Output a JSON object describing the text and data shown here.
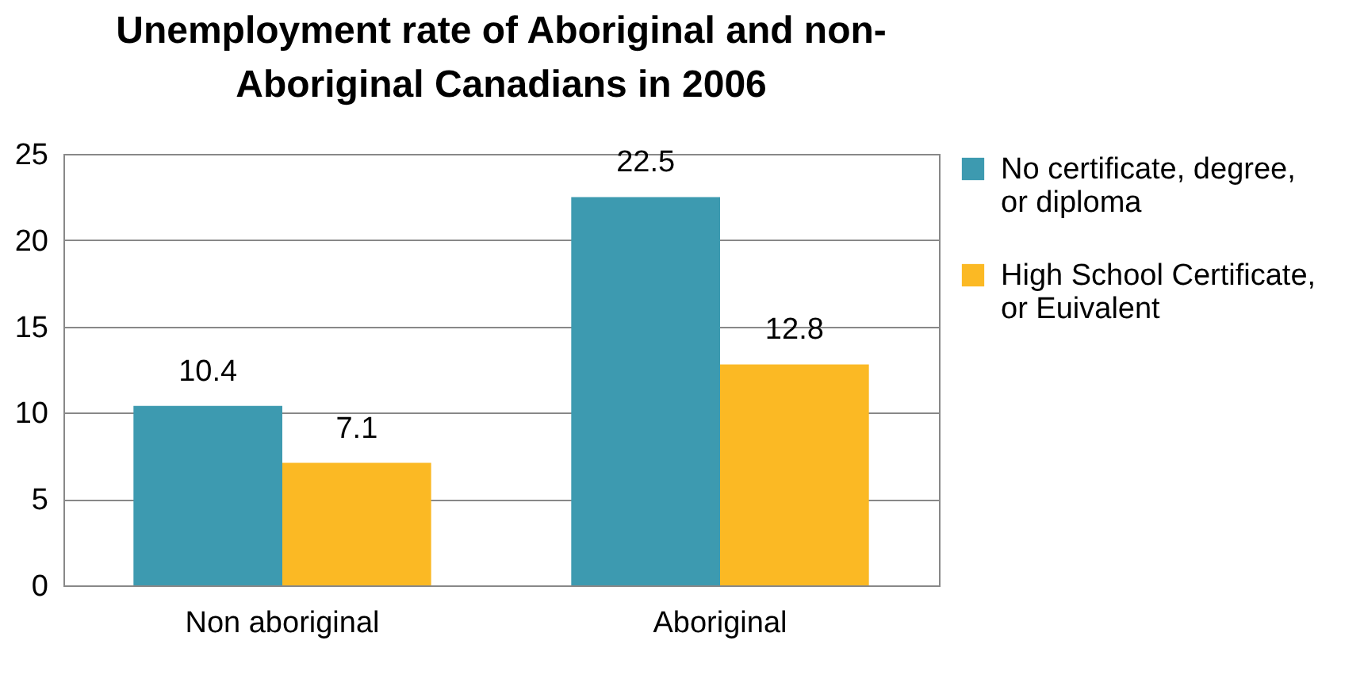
{
  "chart_data": {
    "type": "bar",
    "title": "Unemployment rate of Aboriginal and non-Aboriginal Canadians in 2006",
    "categories": [
      "Non aboriginal",
      "Aboriginal"
    ],
    "series": [
      {
        "name": "No certificate, degree, or diploma",
        "color": "#3d9ab0",
        "values": [
          10.4,
          22.5
        ]
      },
      {
        "name": "High School Certificate, or Euivalent",
        "color": "#fbb924",
        "values": [
          7.1,
          12.8
        ]
      }
    ],
    "ylim": [
      0,
      25
    ],
    "yticks": [
      0,
      5,
      10,
      15,
      20,
      25
    ],
    "grid": "y",
    "legend": "right",
    "data_labels": true
  }
}
